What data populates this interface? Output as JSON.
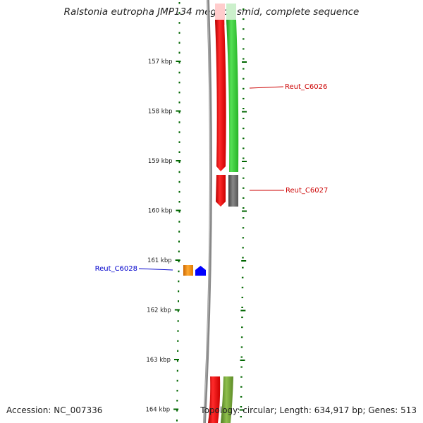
{
  "title": "Ralstonia eutropha JMP134 megaplasmid, complete sequence",
  "scale": {
    "unit": "kbp",
    "ticks": [
      {
        "value": 157,
        "label": "157 kbp"
      },
      {
        "value": 158,
        "label": "158 kbp"
      },
      {
        "value": 159,
        "label": "159 kbp"
      },
      {
        "value": 160,
        "label": "160 kbp"
      },
      {
        "value": 161,
        "label": "161 kbp"
      },
      {
        "value": 162,
        "label": "162 kbp"
      },
      {
        "value": 163,
        "label": "163 kbp"
      },
      {
        "value": 164,
        "label": "164 kbp"
      }
    ]
  },
  "genes": [
    {
      "label": "Reut_C6026",
      "color": "#cc0000"
    },
    {
      "label": "Reut_C6027",
      "color": "#cc0000"
    },
    {
      "label": "Reut_C6028",
      "color": "#0000cc"
    }
  ],
  "colors": {
    "forward_cds": "#ff0000",
    "cog_green": "#33cc33",
    "cog_grey": "#666666",
    "cog_orange": "#ff8800",
    "cog_blue": "#0000ff",
    "cog_olive": "#669933",
    "ruler": "#006600",
    "backbone": "#888888"
  },
  "footer": {
    "accession": "Accession: NC_007336",
    "summary": "Topology: circular; Length: 634,917 bp; Genes: 513"
  }
}
